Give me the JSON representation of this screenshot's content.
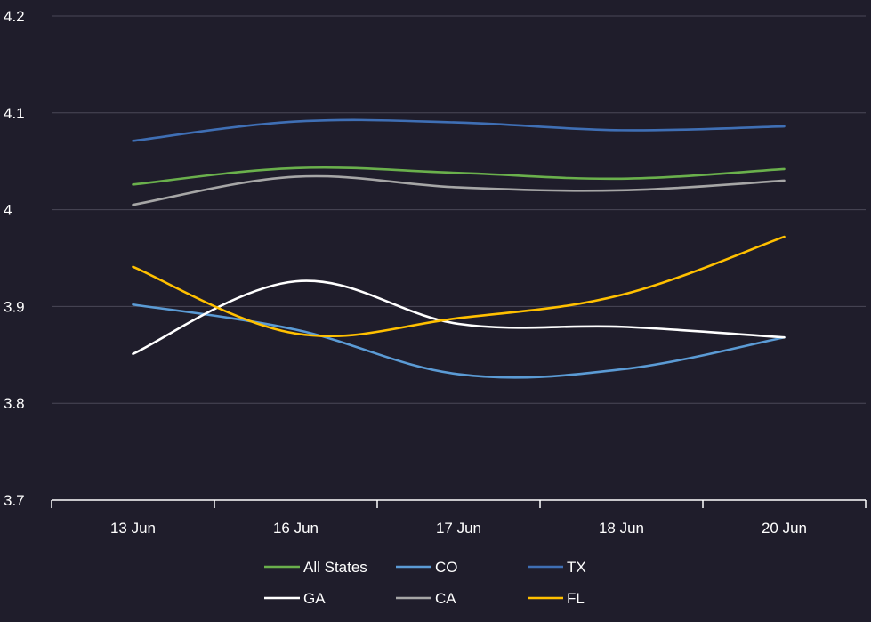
{
  "chart_data": {
    "type": "line",
    "title": "",
    "xlabel": "",
    "ylabel": "",
    "categories": [
      "13 Jun",
      "16 Jun",
      "17 Jun",
      "18 Jun",
      "20 Jun"
    ],
    "ylim": [
      3.7,
      4.2
    ],
    "yticks": [
      "3.7",
      "3.8",
      "3.9",
      "4",
      "4.1",
      "4.2"
    ],
    "ytick_values": [
      3.7,
      3.8,
      3.9,
      4.0,
      4.1,
      4.2
    ],
    "grid": true,
    "smooth": true,
    "legend_position": "bottom",
    "background_color": "#1f1d2b",
    "text_color": "#ffffff",
    "grid_color": "#4a4857",
    "series": [
      {
        "name": "All States",
        "color": "#6ab04c",
        "values": [
          4.026,
          4.043,
          4.038,
          4.032,
          4.042
        ]
      },
      {
        "name": "CO",
        "color": "#5b9bd5",
        "values": [
          3.902,
          3.876,
          3.83,
          3.835,
          3.868
        ]
      },
      {
        "name": "TX",
        "color": "#3f6fb5",
        "values": [
          4.071,
          4.091,
          4.09,
          4.082,
          4.086
        ]
      },
      {
        "name": "GA",
        "color": "#ffffff",
        "values": [
          3.851,
          3.926,
          3.882,
          3.879,
          3.868
        ]
      },
      {
        "name": "CA",
        "color": "#a6a6a6",
        "values": [
          4.005,
          4.034,
          4.023,
          4.02,
          4.03
        ]
      },
      {
        "name": "FL",
        "color": "#ffc000",
        "values": [
          3.941,
          3.872,
          3.888,
          3.912,
          3.972
        ]
      }
    ]
  }
}
